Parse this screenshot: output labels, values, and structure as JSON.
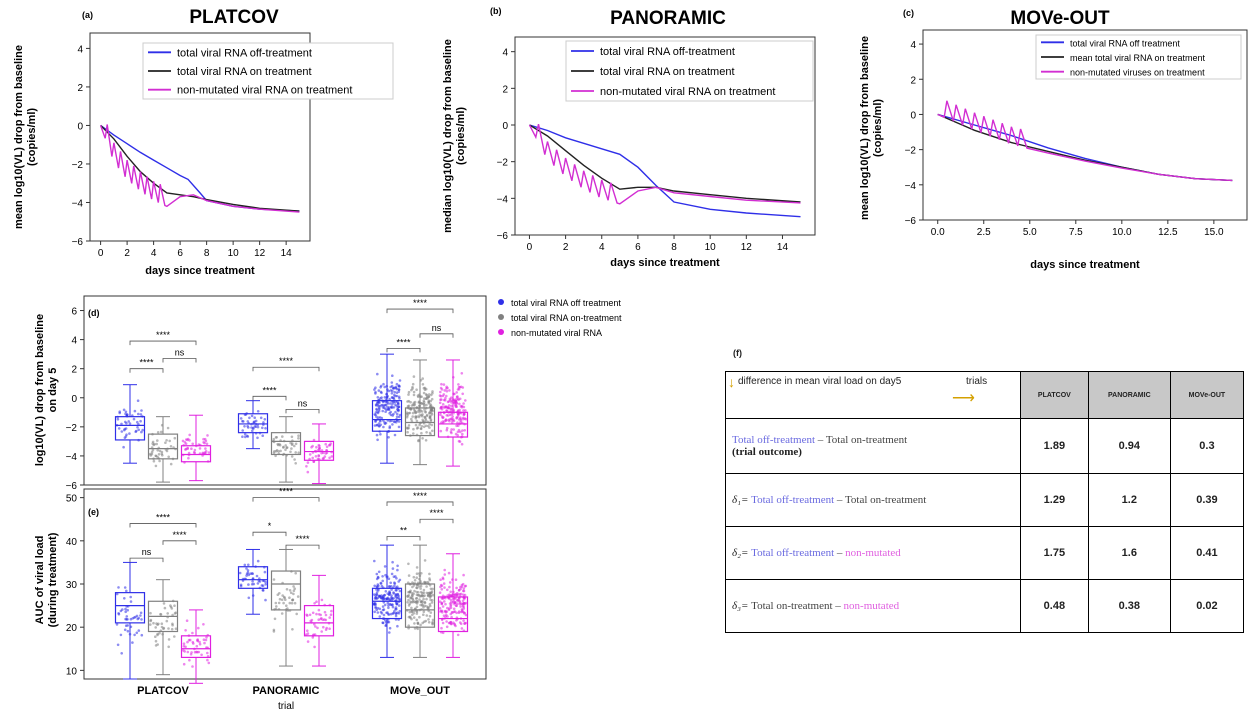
{
  "chart_data": [
    {
      "type": "line",
      "panel": "(a)",
      "title": "PLATCOV",
      "xlabel": "days since treatment",
      "ylabel": "mean log10(VL) drop from baseline\n(copies/ml)",
      "xlim": [
        -0.8,
        15.8
      ],
      "ylim": [
        -6,
        4.8
      ],
      "xticks": [
        0,
        2,
        4,
        6,
        8,
        10,
        12,
        14
      ],
      "xtick_labels": [
        "0",
        "2",
        "4",
        "6",
        "8",
        "10",
        "12",
        "14"
      ],
      "yticks": [
        -6,
        -4,
        -2,
        0,
        2,
        4
      ],
      "ytick_labels": [
        "−6",
        "−4",
        "−2",
        "0",
        "2",
        "4"
      ],
      "legend_position": "top-right",
      "series": [
        {
          "name": "total viral RNA off-treatment",
          "color": "#2f2fe8",
          "x": [
            0,
            1,
            2,
            3,
            4,
            5,
            6,
            6.6,
            7.5,
            8,
            10,
            12,
            15
          ],
          "y": [
            0,
            -0.5,
            -0.95,
            -1.4,
            -1.8,
            -2.2,
            -2.6,
            -2.8,
            -3.5,
            -3.9,
            -4.2,
            -4.35,
            -4.45
          ]
        },
        {
          "name": "total viral RNA on treatment",
          "color": "#222222",
          "x": [
            0,
            1,
            2,
            3,
            4,
            5,
            6,
            7,
            8,
            10,
            12,
            15
          ],
          "y": [
            0,
            -0.7,
            -1.6,
            -2.4,
            -3.0,
            -3.5,
            -3.6,
            -3.7,
            -3.85,
            -4.1,
            -4.3,
            -4.45
          ]
        },
        {
          "name": "non-mutated viral RNA on treatment",
          "color": "#d22ed2",
          "sawtooth": true,
          "x_saw_end": 5,
          "x": [
            0,
            1,
            2,
            3,
            4,
            5,
            6,
            7,
            8,
            10,
            12,
            15
          ],
          "y": [
            0,
            -1.9,
            -2.8,
            -3.4,
            -3.9,
            -4.2,
            -3.7,
            -3.6,
            -3.9,
            -4.2,
            -4.35,
            -4.5
          ]
        }
      ]
    },
    {
      "type": "line",
      "panel": "(b)",
      "title": "PANORAMIC",
      "xlabel": "days since treatment",
      "ylabel": "median log10(VL) drop from baseline\n(copies/ml)",
      "xlim": [
        -0.8,
        15.8
      ],
      "ylim": [
        -6,
        4.8
      ],
      "xticks": [
        0,
        2,
        4,
        6,
        8,
        10,
        12,
        14
      ],
      "xtick_labels": [
        "0",
        "2",
        "4",
        "6",
        "8",
        "10",
        "12",
        "14"
      ],
      "yticks": [
        -6,
        -4,
        -2,
        0,
        2,
        4
      ],
      "ytick_labels": [
        "−6",
        "−4",
        "−2",
        "0",
        "2",
        "4"
      ],
      "legend_position": "top-right",
      "series": [
        {
          "name": "total viral RNA off-treatment",
          "color": "#2f2fe8",
          "x": [
            0,
            1,
            2,
            3,
            4,
            5,
            6,
            7,
            8,
            10,
            12,
            15
          ],
          "y": [
            0,
            -0.3,
            -0.7,
            -1.0,
            -1.3,
            -1.6,
            -2.3,
            -3.3,
            -4.2,
            -4.6,
            -4.8,
            -5.0
          ]
        },
        {
          "name": "total viral RNA on treatment",
          "color": "#222222",
          "x": [
            0,
            1,
            2,
            3,
            4,
            5,
            6,
            7,
            8,
            10,
            12,
            15
          ],
          "y": [
            0,
            -0.6,
            -1.4,
            -2.2,
            -2.9,
            -3.5,
            -3.4,
            -3.4,
            -3.6,
            -3.8,
            -4.0,
            -4.2
          ]
        },
        {
          "name": "non-mutated viral RNA on treatment",
          "color": "#d22ed2",
          "sawtooth": true,
          "x_saw_end": 5,
          "x": [
            0,
            1,
            2,
            3,
            4,
            5,
            6,
            7,
            8,
            10,
            12,
            15
          ],
          "y": [
            0,
            -1.9,
            -2.8,
            -3.5,
            -4.0,
            -4.3,
            -3.6,
            -3.4,
            -3.7,
            -3.9,
            -4.1,
            -4.25
          ]
        }
      ]
    },
    {
      "type": "line",
      "panel": "(c)",
      "title": "MOVe-OUT",
      "xlabel": "days since treatment",
      "ylabel": "mean log10(VL) drop from baseline\n(copies/ml)",
      "xlim": [
        -0.8,
        16.8
      ],
      "ylim": [
        -6,
        4.8
      ],
      "xticks": [
        0,
        2.5,
        5,
        7.5,
        10,
        12.5,
        15
      ],
      "xtick_labels": [
        "0.0",
        "2.5",
        "5.0",
        "7.5",
        "10.0",
        "12.5",
        "15.0"
      ],
      "yticks": [
        -6,
        -4,
        -2,
        0,
        2,
        4
      ],
      "ytick_labels": [
        "−6",
        "−4",
        "−2",
        "0",
        "2",
        "4"
      ],
      "legend_position": "top-right",
      "series": [
        {
          "name": "total viral RNA off treatment",
          "color": "#2f2fe8",
          "x": [
            0,
            2,
            4,
            6,
            8,
            10,
            12,
            14,
            16
          ],
          "y": [
            0,
            -0.6,
            -1.2,
            -1.9,
            -2.5,
            -3.0,
            -3.4,
            -3.65,
            -3.75
          ]
        },
        {
          "name": "mean total viral RNA on treatment",
          "color": "#222222",
          "x": [
            0,
            2,
            4,
            6,
            8,
            10,
            12,
            14,
            16
          ],
          "y": [
            0,
            -0.9,
            -1.6,
            -2.1,
            -2.6,
            -3.0,
            -3.4,
            -3.65,
            -3.75
          ]
        },
        {
          "name": "non-mutated viruses on treatment",
          "color": "#d22ed2",
          "sawtooth": true,
          "x_saw_end": 5,
          "x": [
            0,
            2,
            4,
            6,
            8,
            10,
            12,
            14,
            16
          ],
          "y": [
            0,
            -0.9,
            -1.7,
            -2.2,
            -2.65,
            -3.05,
            -3.4,
            -3.65,
            -3.75
          ]
        }
      ]
    },
    {
      "type": "box",
      "panel": "(d)",
      "ylabel": "log10(VL) drop from baseline\non day 5",
      "ylim": [
        -6,
        7
      ],
      "yticks": [
        -6,
        -4,
        -2,
        0,
        2,
        4,
        6
      ],
      "ytick_labels": [
        "−6",
        "−4",
        "−2",
        "0",
        "2",
        "4",
        "6"
      ],
      "groups": [
        "PLATCOV",
        "PANORAMIC",
        "MOVe_OUT"
      ],
      "series": [
        {
          "name": "total viral RNA off treatment",
          "color": "#2f2fe8",
          "boxes": [
            {
              "whislo": -4.5,
              "q1": -2.9,
              "med": -1.9,
              "q3": -1.3,
              "whishi": 0.9
            },
            {
              "whislo": -3.5,
              "q1": -2.4,
              "med": -1.8,
              "q3": -1.1,
              "whishi": -0.2
            },
            {
              "whislo": -4.5,
              "q1": -2.3,
              "med": -1.5,
              "q3": -0.2,
              "whishi": 3.0
            }
          ]
        },
        {
          "name": "total viral RNA on-treatment",
          "color": "#808080",
          "boxes": [
            {
              "whislo": -5.8,
              "q1": -4.2,
              "med": -3.5,
              "q3": -2.5,
              "whishi": -1.3
            },
            {
              "whislo": -5.8,
              "q1": -3.9,
              "med": -3.0,
              "q3": -2.4,
              "whishi": -1.3
            },
            {
              "whislo": -4.6,
              "q1": -2.6,
              "med": -1.7,
              "q3": -0.7,
              "whishi": 2.6
            }
          ]
        },
        {
          "name": "non-mutated viral RNA",
          "color": "#e020e0",
          "boxes": [
            {
              "whislo": -5.7,
              "q1": -4.4,
              "med": -3.9,
              "q3": -3.3,
              "whishi": -1.2
            },
            {
              "whislo": -5.9,
              "q1": -4.3,
              "med": -3.7,
              "q3": -3.0,
              "whishi": -1.8
            },
            {
              "whislo": -4.7,
              "q1": -2.7,
              "med": -1.8,
              "q3": -1.0,
              "whishi": 2.6
            }
          ]
        }
      ],
      "significance": [
        {
          "group": 0,
          "from": 0,
          "to": 2,
          "level": 3.9,
          "label": "****"
        },
        {
          "group": 0,
          "from": 0,
          "to": 1,
          "level": 2.0,
          "label": "****"
        },
        {
          "group": 0,
          "from": 1,
          "to": 2,
          "level": 2.7,
          "label": "ns"
        },
        {
          "group": 1,
          "from": 0,
          "to": 2,
          "level": 2.1,
          "label": "****"
        },
        {
          "group": 1,
          "from": 0,
          "to": 1,
          "level": 0.1,
          "label": "****"
        },
        {
          "group": 1,
          "from": 1,
          "to": 2,
          "level": -0.8,
          "label": "ns"
        },
        {
          "group": 2,
          "from": 0,
          "to": 2,
          "level": 6.1,
          "label": "****"
        },
        {
          "group": 2,
          "from": 0,
          "to": 1,
          "level": 3.4,
          "label": "****"
        },
        {
          "group": 2,
          "from": 1,
          "to": 2,
          "level": 4.4,
          "label": "ns"
        }
      ]
    },
    {
      "type": "box",
      "panel": "(e)",
      "ylabel": "AUC of viral load\n(during treatment)",
      "xlabel": "trial",
      "ylim": [
        8,
        52
      ],
      "yticks": [
        10,
        20,
        30,
        40,
        50
      ],
      "ytick_labels": [
        "10",
        "20",
        "30",
        "40",
        "50"
      ],
      "groups": [
        "PLATCOV",
        "PANORAMIC",
        "MOVe_OUT"
      ],
      "series": [
        {
          "name": "total viral RNA off treatment",
          "color": "#2f2fe8",
          "boxes": [
            {
              "whislo": 8,
              "q1": 21,
              "med": 25,
              "q3": 28,
              "whishi": 35
            },
            {
              "whislo": 23,
              "q1": 29,
              "med": 31,
              "q3": 34,
              "whishi": 38
            },
            {
              "whislo": 13,
              "q1": 22,
              "med": 26,
              "q3": 29,
              "whishi": 39
            }
          ]
        },
        {
          "name": "total viral RNA on-treatment",
          "color": "#808080",
          "boxes": [
            {
              "whislo": 9,
              "q1": 19,
              "med": 22.5,
              "q3": 26,
              "whishi": 31
            },
            {
              "whislo": 11,
              "q1": 24,
              "med": 30,
              "q3": 33,
              "whishi": 38
            },
            {
              "whislo": 13,
              "q1": 20,
              "med": 24,
              "q3": 30,
              "whishi": 39
            }
          ]
        },
        {
          "name": "non-mutated viral RNA",
          "color": "#e020e0",
          "boxes": [
            {
              "whislo": 7,
              "q1": 13,
              "med": 15,
              "q3": 18,
              "whishi": 24
            },
            {
              "whislo": 11,
              "q1": 18,
              "med": 21,
              "q3": 25,
              "whishi": 32
            },
            {
              "whislo": 13,
              "q1": 19,
              "med": 22,
              "q3": 27,
              "whishi": 37
            }
          ]
        }
      ],
      "significance": [
        {
          "group": 0,
          "from": 0,
          "to": 2,
          "level": 44,
          "label": "****"
        },
        {
          "group": 0,
          "from": 0,
          "to": 1,
          "level": 36,
          "label": "ns"
        },
        {
          "group": 0,
          "from": 1,
          "to": 2,
          "level": 40,
          "label": "****"
        },
        {
          "group": 1,
          "from": 0,
          "to": 2,
          "level": 50,
          "label": "****"
        },
        {
          "group": 1,
          "from": 0,
          "to": 1,
          "level": 42,
          "label": "*"
        },
        {
          "group": 1,
          "from": 1,
          "to": 2,
          "level": 39,
          "label": "****"
        },
        {
          "group": 2,
          "from": 0,
          "to": 2,
          "level": 49,
          "label": "****"
        },
        {
          "group": 2,
          "from": 0,
          "to": 1,
          "level": 41,
          "label": "**"
        },
        {
          "group": 2,
          "from": 1,
          "to": 2,
          "level": 45,
          "label": "****"
        }
      ]
    },
    {
      "type": "table",
      "panel": "(f)",
      "header_note": "difference in mean viral load on day5",
      "header_trials": "trials",
      "columns": [
        "PLATCOV",
        "PANORAMIC",
        "MOVe-OUT"
      ],
      "rows": [
        {
          "a": "Total off-treatment",
          "sep": " – ",
          "b": "Total on-treatment",
          "extra": "(trial outcome)",
          "values": [
            "1.89",
            "0.94",
            "0.3"
          ]
        },
        {
          "prefix": "δ₁= ",
          "a": "Total off-treatment",
          "sep": " – ",
          "b": "Total on-treatment",
          "values": [
            "1.29",
            "1.2",
            "0.39"
          ]
        },
        {
          "prefix": "δ₂= ",
          "a": "Total off-treatment",
          "sep": " – ",
          "b": "non-mutated",
          "values": [
            "1.75",
            "1.6",
            "0.41"
          ]
        },
        {
          "prefix": "δ₃= ",
          "a": "Total on-treatment",
          "sep": " – ",
          "b": "non-mutated",
          "values": [
            "0.48",
            "0.38",
            "0.02"
          ]
        }
      ]
    }
  ]
}
